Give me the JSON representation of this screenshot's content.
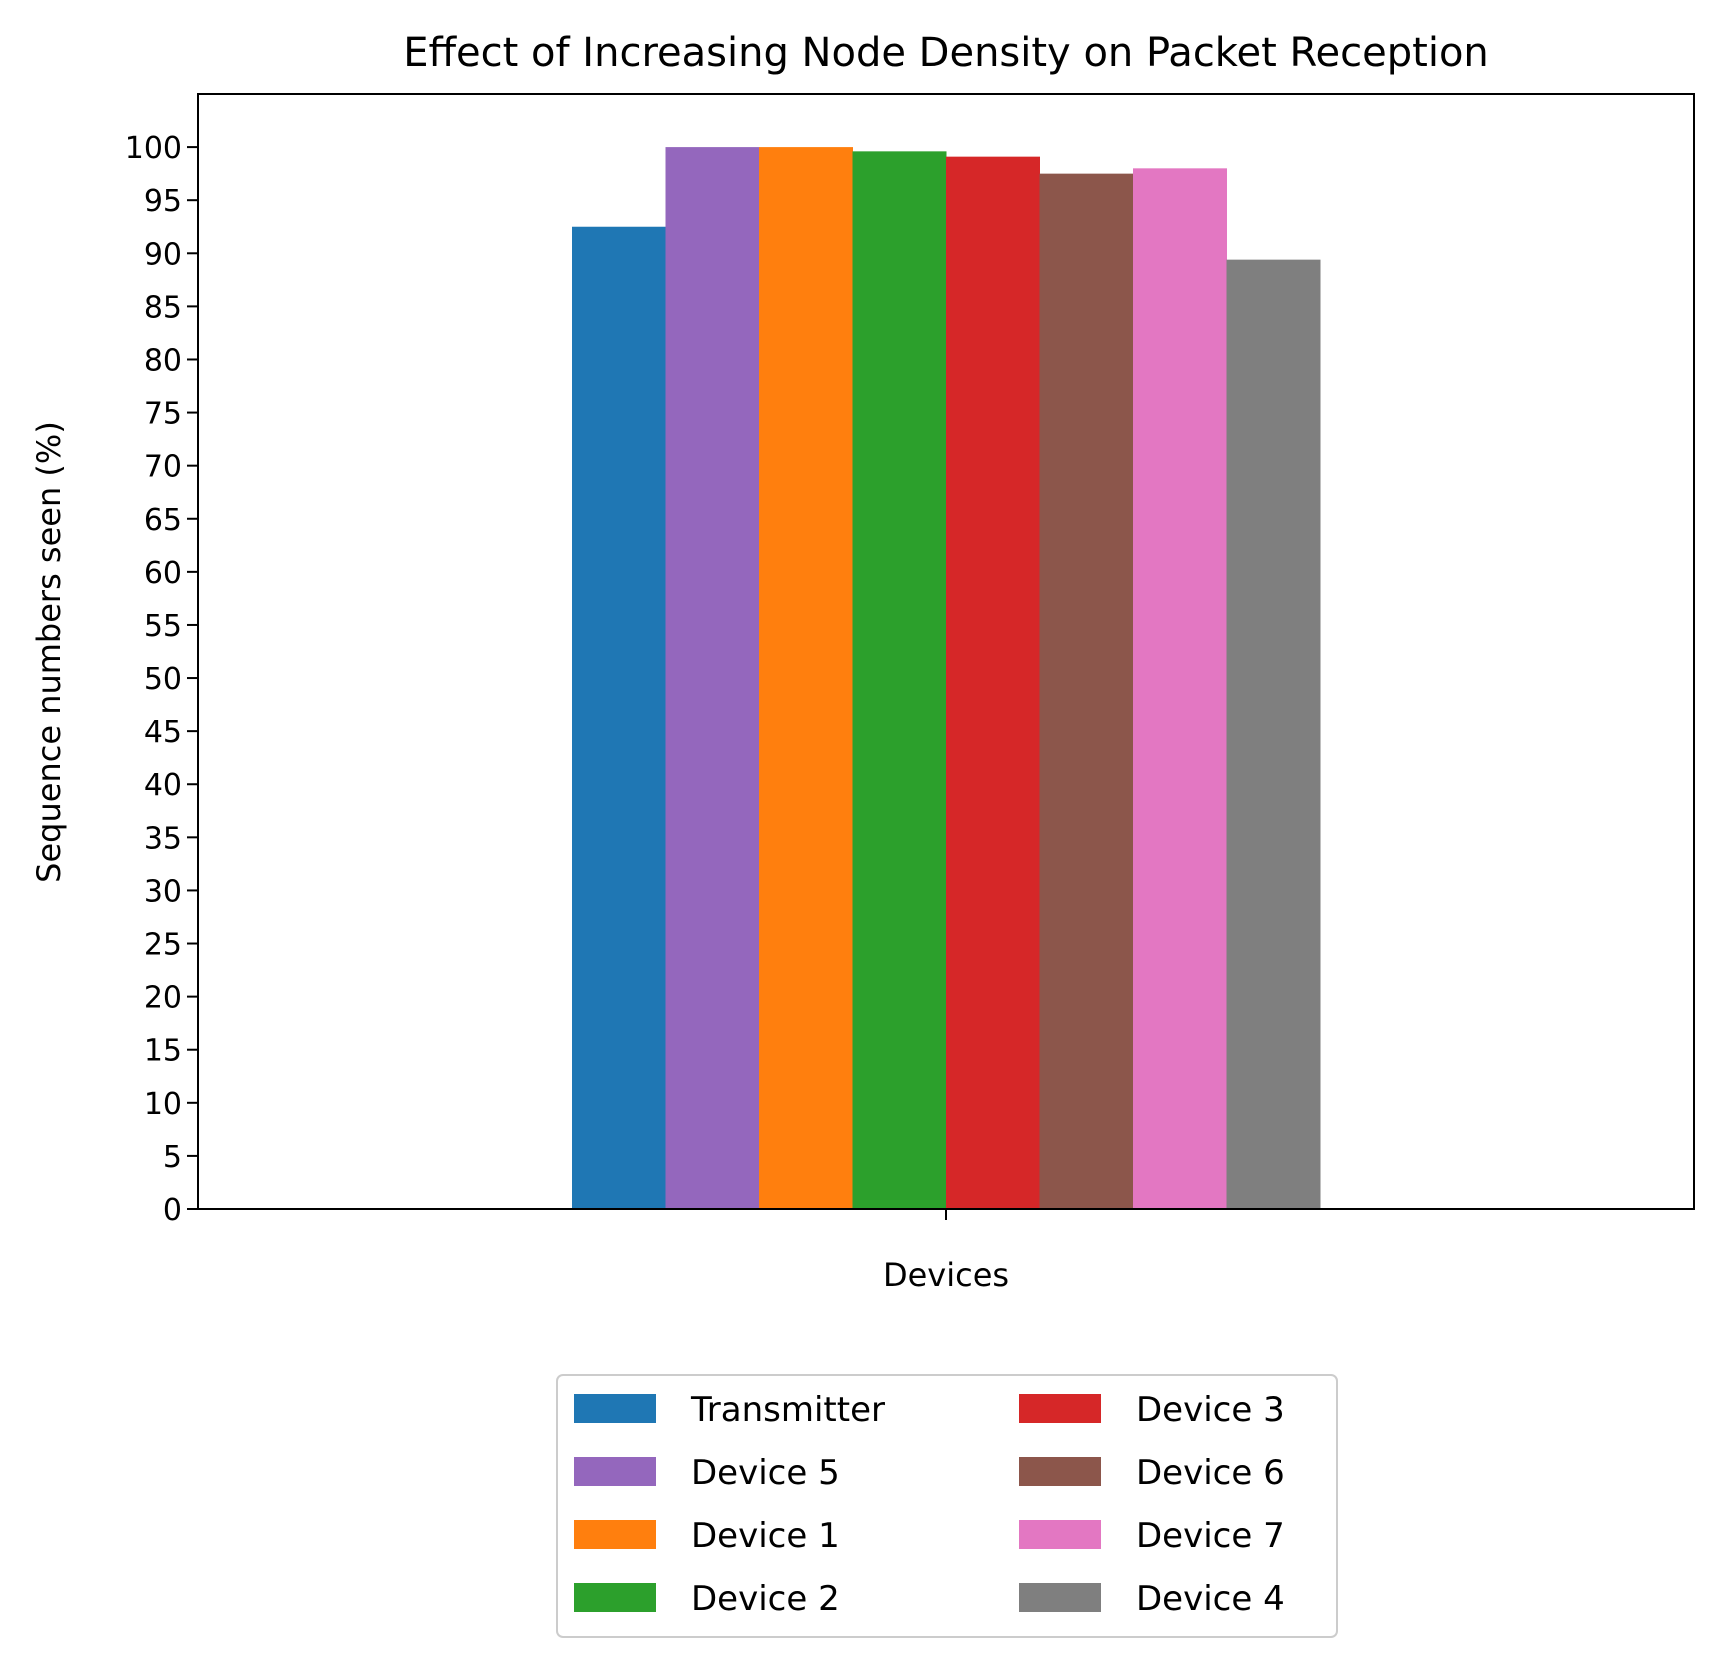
{
  "chart_data": {
    "type": "bar",
    "title": "Effect of Increasing Node Density on Packet Reception",
    "xlabel": "Devices",
    "ylabel": "Sequence numbers seen (%)",
    "ylim": [
      0,
      105
    ],
    "yticks": [
      0,
      5,
      10,
      15,
      20,
      25,
      30,
      35,
      40,
      45,
      50,
      55,
      60,
      65,
      70,
      75,
      80,
      85,
      90,
      95,
      100
    ],
    "grid": false,
    "legend_position": "bottom-center",
    "series": [
      {
        "name": "Transmitter",
        "value": 92.5,
        "color": "#1f77b4"
      },
      {
        "name": "Device 5",
        "value": 100,
        "color": "#9467bd"
      },
      {
        "name": "Device 1",
        "value": 100,
        "color": "#ff7f0e"
      },
      {
        "name": "Device 2",
        "value": 99.6,
        "color": "#2ca02c"
      },
      {
        "name": "Device 3",
        "value": 99.1,
        "color": "#d62728"
      },
      {
        "name": "Device 6",
        "value": 97.5,
        "color": "#8c564b"
      },
      {
        "name": "Device 7",
        "value": 98,
        "color": "#e377c2"
      },
      {
        "name": "Device 4",
        "value": 89.4,
        "color": "#7f7f7f"
      }
    ],
    "legend_order": [
      "Transmitter",
      "Device 5",
      "Device 1",
      "Device 2",
      "Device 3",
      "Device 6",
      "Device 7",
      "Device 4"
    ]
  }
}
